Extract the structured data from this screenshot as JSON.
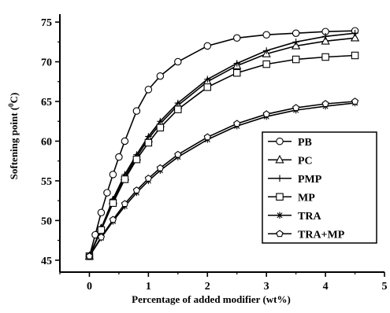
{
  "chart_data": {
    "type": "line",
    "xlabel": "Percentage of added modifier (wt%)",
    "ylabel_main": "Softening point (",
    "ylabel_sup": "0",
    "ylabel_tail": "C)",
    "xlim": [
      -0.5,
      5
    ],
    "ylim": [
      43.5,
      76
    ],
    "xticks": [
      "0",
      "1",
      "2",
      "3",
      "4",
      "5"
    ],
    "yticks": [
      "45",
      "50",
      "55",
      "60",
      "65",
      "70",
      "75"
    ],
    "legend_position": "center-right",
    "grid": false,
    "series": [
      {
        "name": "PB",
        "marker": "circle",
        "x": [
          0,
          0.1,
          0.2,
          0.3,
          0.4,
          0.5,
          0.6,
          0.8,
          1.0,
          1.2,
          1.5,
          2.0,
          2.5,
          3.0,
          3.5,
          4.0,
          4.5
        ],
        "values": [
          45.5,
          48.2,
          51.0,
          53.5,
          55.8,
          58.0,
          60.0,
          63.8,
          66.5,
          68.2,
          70.0,
          72.0,
          73.0,
          73.4,
          73.6,
          73.8,
          73.9
        ]
      },
      {
        "name": "PC",
        "marker": "triangle",
        "x": [
          0,
          0.2,
          0.4,
          0.6,
          0.8,
          1.0,
          1.2,
          1.5,
          2.0,
          2.5,
          3.0,
          3.5,
          4.0,
          4.5
        ],
        "values": [
          45.5,
          49.0,
          52.5,
          55.5,
          58.0,
          60.3,
          62.2,
          64.5,
          67.5,
          69.5,
          71.0,
          72.0,
          72.6,
          73.0
        ]
      },
      {
        "name": "PMP",
        "marker": "plus",
        "x": [
          0,
          0.2,
          0.4,
          0.6,
          0.8,
          1.0,
          1.2,
          1.5,
          2.0,
          2.5,
          3.0,
          3.5,
          4.0,
          4.5
        ],
        "values": [
          45.5,
          49.0,
          52.7,
          55.8,
          58.3,
          60.6,
          62.5,
          64.8,
          67.8,
          69.8,
          71.4,
          72.5,
          73.2,
          73.6
        ]
      },
      {
        "name": "MP",
        "marker": "square",
        "x": [
          0,
          0.2,
          0.4,
          0.6,
          0.8,
          1.0,
          1.2,
          1.5,
          2.0,
          2.5,
          3.0,
          3.5,
          4.0,
          4.5
        ],
        "values": [
          45.5,
          48.8,
          52.2,
          55.2,
          57.7,
          59.8,
          61.7,
          64.0,
          66.8,
          68.6,
          69.7,
          70.3,
          70.6,
          70.8
        ]
      },
      {
        "name": "TRA",
        "marker": "asterisk",
        "x": [
          0,
          0.2,
          0.4,
          0.6,
          0.8,
          1.0,
          1.2,
          1.5,
          2.0,
          2.5,
          3.0,
          3.5,
          4.0,
          4.5
        ],
        "values": [
          45.5,
          47.8,
          49.9,
          51.8,
          53.5,
          55.0,
          56.3,
          58.0,
          60.2,
          61.9,
          63.1,
          63.9,
          64.4,
          64.8
        ]
      },
      {
        "name": "TRA+MP",
        "marker": "pentagon",
        "x": [
          0,
          0.2,
          0.4,
          0.6,
          0.8,
          1.0,
          1.2,
          1.5,
          2.0,
          2.5,
          3.0,
          3.5,
          4.0,
          4.5
        ],
        "values": [
          45.5,
          47.9,
          50.1,
          52.1,
          53.8,
          55.3,
          56.6,
          58.3,
          60.5,
          62.2,
          63.4,
          64.2,
          64.7,
          65.0
        ]
      }
    ]
  }
}
